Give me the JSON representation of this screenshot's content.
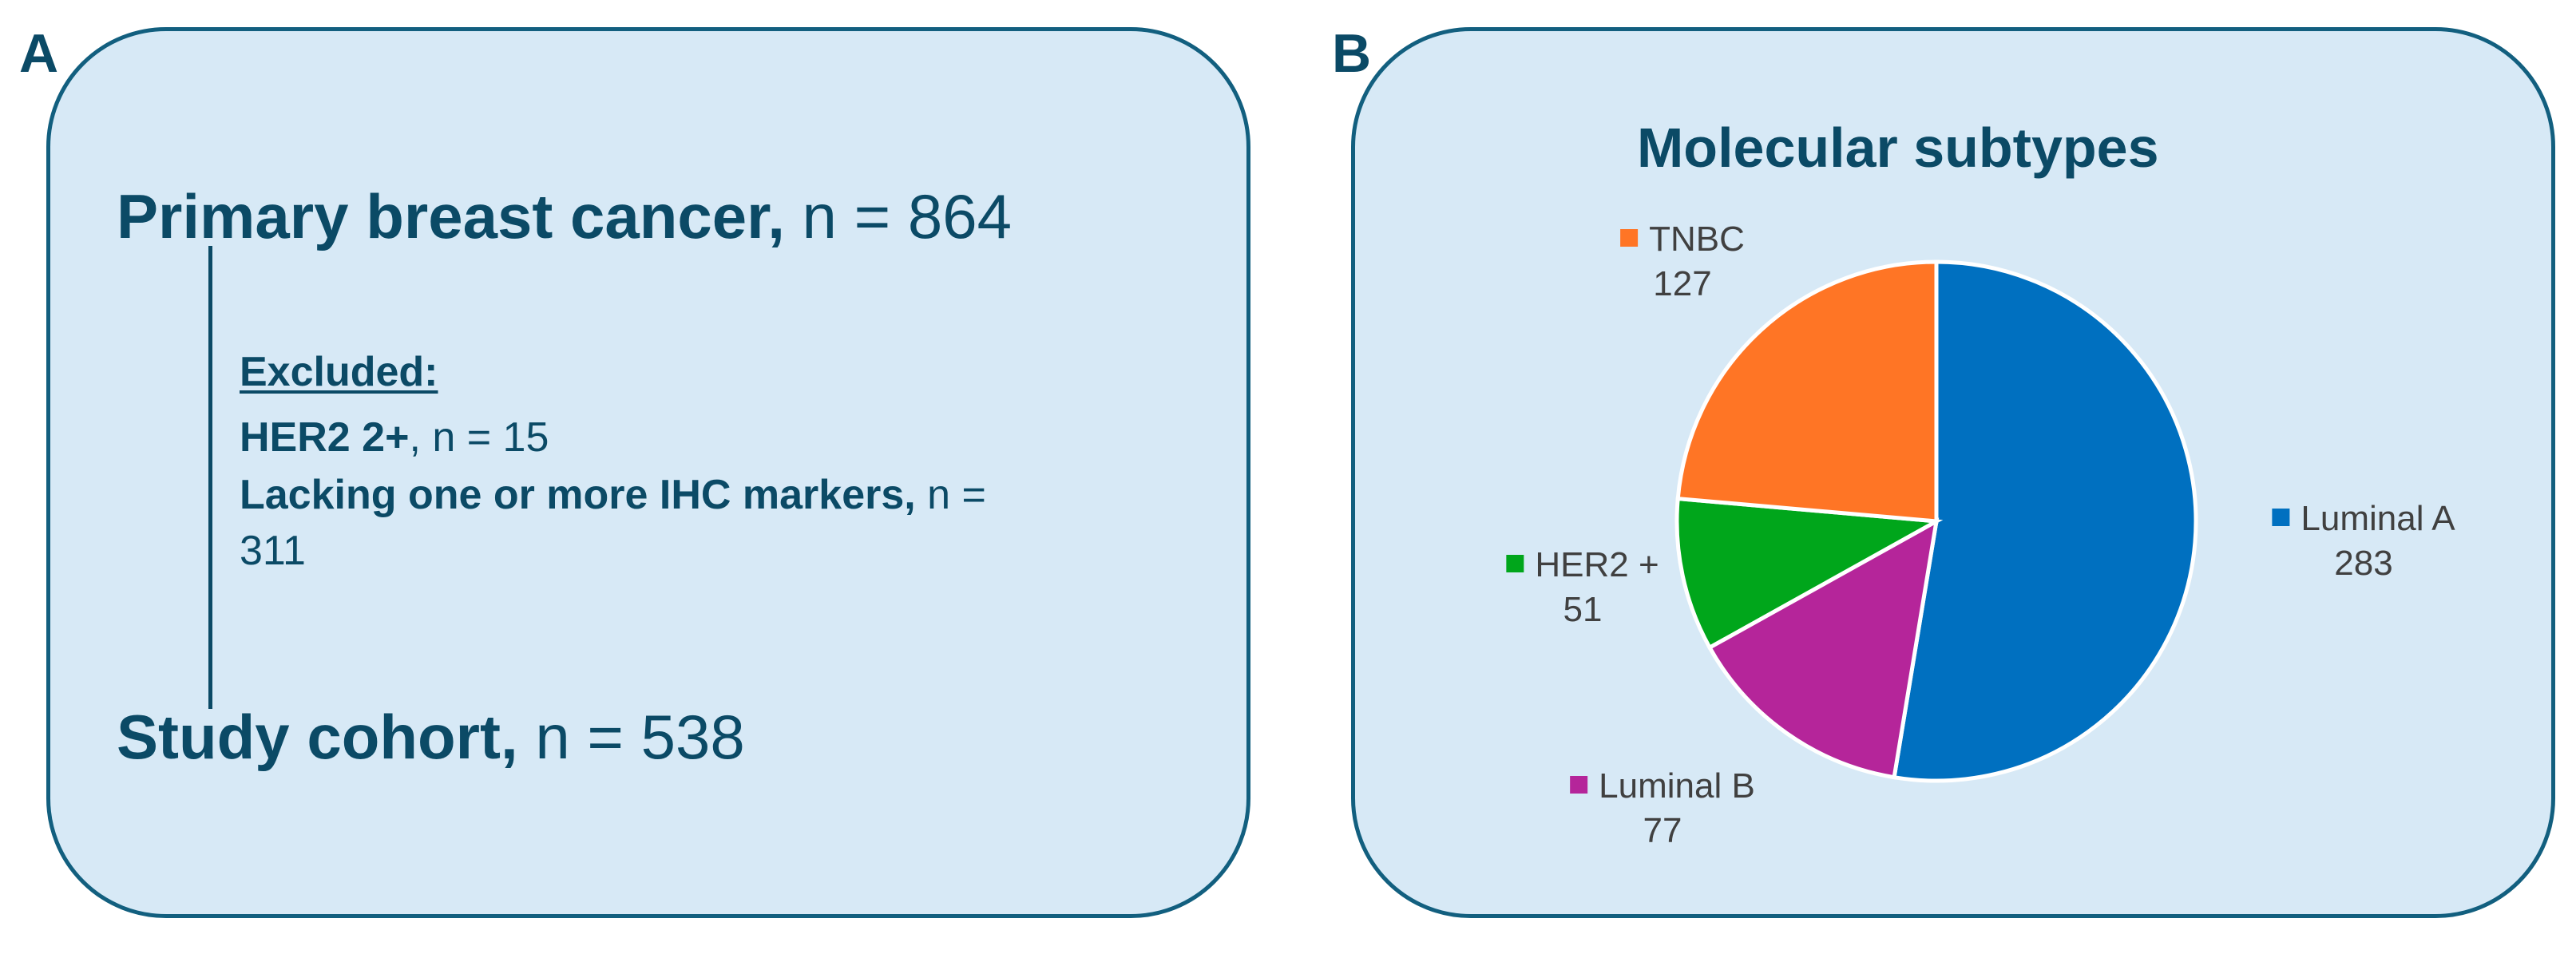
{
  "panel_a": {
    "letter": "A",
    "top_title": "Primary breast cancer,",
    "top_value": " n = 864",
    "excluded_title": "Excluded:",
    "excl_1_bold": "HER2 2+",
    "excl_1_rest": ", n = 15",
    "excl_2_bold": "Lacking one or more IHC markers,",
    "excl_2_rest": " n =",
    "excl_2_cont": "311",
    "bottom_title": "Study cohort,",
    "bottom_value": " n = 538"
  },
  "panel_b": {
    "letter": "B",
    "title": "Molecular subtypes"
  },
  "chart_data": {
    "type": "pie",
    "title": "Molecular subtypes",
    "start_angle_deg": 0,
    "direction": "clockwise",
    "slices": [
      {
        "label": "Luminal A",
        "value": 283,
        "color": "#0070c0"
      },
      {
        "label": "Luminal B",
        "value": 77,
        "color": "#b5259a"
      },
      {
        "label": "HER2 +",
        "value": 51,
        "color": "#00a61b"
      },
      {
        "label": "TNBC",
        "value": 127,
        "color": "#ff7525"
      }
    ]
  },
  "colors": {
    "panel_fill": "#d7e9f6",
    "panel_border": "#125f7f",
    "text_dark": "#0b4a66",
    "legend_text": "#404040"
  }
}
